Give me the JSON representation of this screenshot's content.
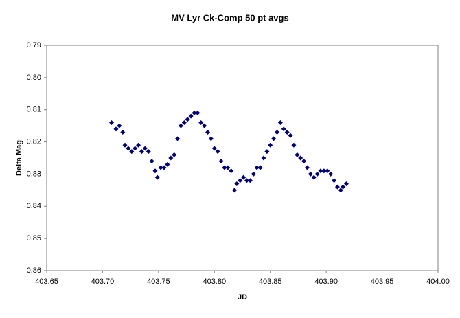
{
  "chart_data": {
    "type": "scatter",
    "title": "MV Lyr Ck-Comp 50 pt avgs",
    "x_label": "JD",
    "y_label": "Delta Mag",
    "color": "#000080",
    "marker": "diamond",
    "grid": false,
    "y_inverted": true,
    "xlim": [
      403.65,
      404.0
    ],
    "xticks": [
      403.65,
      {
        "value": 403.7,
        "label": "403.70"
      },
      403.75,
      {
        "value": 403.8,
        "label": "403.80"
      },
      403.85,
      {
        "value": 403.9,
        "label": "403.90"
      },
      403.95,
      {
        "value": 404.0,
        "label": "404.00"
      }
    ],
    "ylim": [
      0.79,
      0.86
    ],
    "yticks": [
      0.79,
      {
        "value": 0.8,
        "label": "0.80"
      },
      0.81,
      0.82,
      0.83,
      0.84,
      0.85,
      0.86
    ],
    "x": [
      403.708,
      403.712,
      403.715,
      403.718,
      403.72,
      403.723,
      403.726,
      403.729,
      403.732,
      403.735,
      403.738,
      403.741,
      403.744,
      403.747,
      403.749,
      403.752,
      403.755,
      403.758,
      403.761,
      403.764,
      403.767,
      403.77,
      403.773,
      403.776,
      403.779,
      403.782,
      403.785,
      403.788,
      403.791,
      403.794,
      403.797,
      403.8,
      403.803,
      403.806,
      403.809,
      403.812,
      403.815,
      403.818,
      403.82,
      403.823,
      403.826,
      403.829,
      403.832,
      403.835,
      403.838,
      403.841,
      403.844,
      403.847,
      403.85,
      403.853,
      403.856,
      403.859,
      403.862,
      403.865,
      403.868,
      403.871,
      403.874,
      403.877,
      403.88,
      403.883,
      403.886,
      403.889,
      403.892,
      403.895,
      403.898,
      403.901,
      403.904,
      403.907,
      403.91,
      403.913,
      403.915,
      403.918
    ],
    "values": [
      0.814,
      0.816,
      0.815,
      0.817,
      0.821,
      0.822,
      0.823,
      0.822,
      0.821,
      0.823,
      0.822,
      0.823,
      0.826,
      0.829,
      0.831,
      0.828,
      0.828,
      0.827,
      0.825,
      0.824,
      0.819,
      0.815,
      0.814,
      0.813,
      0.812,
      0.811,
      0.811,
      0.814,
      0.815,
      0.817,
      0.819,
      0.822,
      0.823,
      0.826,
      0.828,
      0.828,
      0.829,
      0.835,
      0.833,
      0.832,
      0.831,
      0.832,
      0.832,
      0.83,
      0.828,
      0.828,
      0.825,
      0.823,
      0.821,
      0.819,
      0.817,
      0.814,
      0.816,
      0.817,
      0.818,
      0.821,
      0.824,
      0.825,
      0.826,
      0.828,
      0.83,
      0.831,
      0.83,
      0.829,
      0.829,
      0.829,
      0.83,
      0.832,
      0.834,
      0.835,
      0.834,
      0.833
    ]
  }
}
